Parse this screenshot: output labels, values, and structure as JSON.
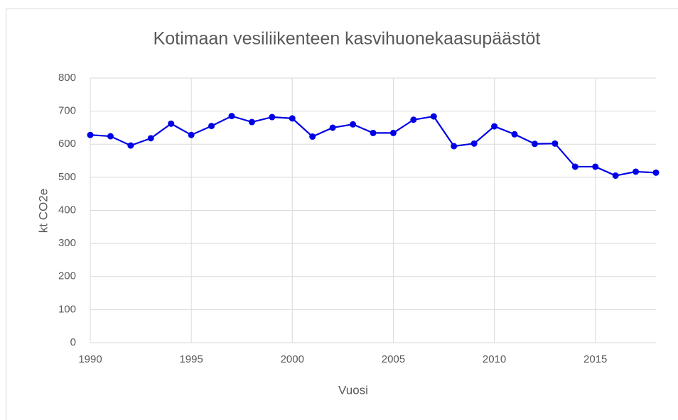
{
  "chart_data": {
    "type": "line",
    "title": "Kotimaan vesiliikenteen kasvihuonekaasupäästöt",
    "x_label": "Vuosi",
    "y_label": "kt CO2e",
    "x": [
      1990,
      1991,
      1992,
      1993,
      1994,
      1995,
      1996,
      1997,
      1998,
      1999,
      2000,
      2001,
      2002,
      2003,
      2004,
      2005,
      2006,
      2007,
      2008,
      2009,
      2010,
      2011,
      2012,
      2013,
      2014,
      2015,
      2016,
      2017,
      2018
    ],
    "series": [
      {
        "name": "kt CO2e",
        "color": "#0000e6",
        "values": [
          628,
          624,
          596,
          618,
          662,
          628,
          655,
          685,
          667,
          682,
          678,
          623,
          650,
          660,
          634,
          634,
          674,
          684,
          594,
          602,
          654,
          630,
          601,
          602,
          532,
          532,
          505,
          517,
          514
        ]
      }
    ],
    "xlim": [
      1990,
      2018
    ],
    "xticks": [
      1990,
      1995,
      2000,
      2005,
      2010,
      2015
    ],
    "ylim": [
      0,
      800
    ],
    "yticks": [
      0,
      100,
      200,
      300,
      400,
      500,
      600,
      700,
      800
    ],
    "grid": true
  }
}
